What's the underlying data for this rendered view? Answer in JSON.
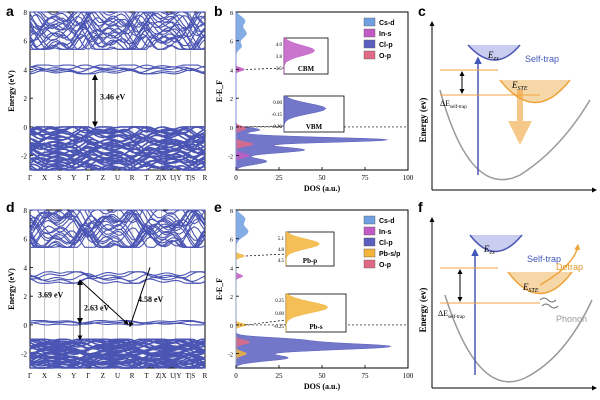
{
  "colors": {
    "band": "#4b55b3",
    "cs_d": "#6f9fe0",
    "in_s": "#c25cc4",
    "cl_p": "#5a5fbf",
    "o_p": "#e06a86",
    "pb_sp": "#f2b43a",
    "arrow_orange": "#f0a43c",
    "curve": "#9a9a9a",
    "selftrap_text": "#4057b8",
    "detrap_text": "#e59a28"
  },
  "chart_data": [
    {
      "panel": "a",
      "type": "line",
      "title": "",
      "ylabel": "Energy (eV)",
      "ylim": [
        -3,
        8
      ],
      "yticks": [
        "8",
        "6",
        "4",
        "2",
        "0",
        "-2"
      ],
      "kpoints": [
        "Γ",
        "X",
        "S",
        "Y",
        "Γ",
        "Z",
        "U",
        "R",
        "T",
        "Z|X",
        "U|Y",
        "T|S",
        "R"
      ],
      "annotations": [
        "3.46 eV"
      ],
      "band_groups": [
        {
          "name": "conduction_upper",
          "range": [
            5.4,
            8.0
          ]
        },
        {
          "name": "conduction_edge",
          "range": [
            3.7,
            4.3
          ]
        },
        {
          "name": "valence",
          "range": [
            -3.0,
            0.0
          ]
        }
      ]
    },
    {
      "panel": "b",
      "type": "area",
      "ylabel": "E-E_F",
      "xlabel": "DOS (a.u.)",
      "xlim": [
        0,
        100
      ],
      "ylim": [
        -3,
        8
      ],
      "xticks": [
        "0",
        "25",
        "50",
        "75",
        "100"
      ],
      "yticks": [
        "8",
        "6",
        "4",
        "2",
        "0",
        "-2"
      ],
      "legend": [
        "Cs-d",
        "In-s",
        "Cl-p",
        "O-p"
      ],
      "insets": [
        {
          "label": "CBM",
          "yticks": [
            "4.0",
            "3.8",
            "3.5"
          ]
        },
        {
          "label": "VBM",
          "yticks": [
            "0.00",
            "-0.15",
            "-0.30"
          ]
        }
      ],
      "peaks": [
        {
          "energy": -0.8,
          "value": 88
        },
        {
          "energy": -1.6,
          "value": 40
        },
        {
          "energy": 4.0,
          "value": 7
        },
        {
          "energy": 6.5,
          "value": 6
        }
      ]
    },
    {
      "panel": "d",
      "type": "line",
      "ylabel": "Energy (eV)",
      "ylim": [
        -3,
        8
      ],
      "yticks": [
        "8",
        "6",
        "4",
        "2",
        "0",
        "-2"
      ],
      "kpoints": [
        "Γ",
        "X",
        "S",
        "Y",
        "Γ",
        "Z",
        "U",
        "R",
        "T",
        "Z|X",
        "U|Y",
        "T|S",
        "R"
      ],
      "annotations": [
        "3.69 eV",
        "2.63 eV",
        "4.58 eV"
      ],
      "band_groups": [
        {
          "name": "conduction_upper",
          "range": [
            5.4,
            8.0
          ]
        },
        {
          "name": "conduction_edge",
          "range": [
            2.9,
            3.7
          ]
        },
        {
          "name": "pb_band",
          "range": [
            0.0,
            0.3
          ]
        },
        {
          "name": "valence",
          "range": [
            -3.0,
            -1.0
          ]
        }
      ]
    },
    {
      "panel": "e",
      "type": "area",
      "ylabel": "E-E_F",
      "xlabel": "DOS (a.u.)",
      "xlim": [
        0,
        100
      ],
      "ylim": [
        -3,
        8
      ],
      "xticks": [
        "0",
        "25",
        "50",
        "75",
        "100"
      ],
      "yticks": [
        "8",
        "6",
        "4",
        "2",
        "0",
        "-2"
      ],
      "legend": [
        "Cs-d",
        "In-s",
        "Cl-p",
        "Pb-s/p",
        "O-p"
      ],
      "insets": [
        {
          "label": "Pb-p",
          "yticks": [
            "5.1",
            "4.8",
            "4.5"
          ]
        },
        {
          "label": "Pb-s",
          "yticks": [
            "0.25",
            "0.00",
            "-0.25"
          ]
        }
      ],
      "peaks": [
        {
          "energy": -1.5,
          "value": 90
        },
        {
          "energy": 0.0,
          "value": 6
        },
        {
          "energy": 4.8,
          "value": 5
        },
        {
          "energy": 6.5,
          "value": 7
        }
      ]
    }
  ],
  "panel_c": {
    "label": "c",
    "ylabel": "Energy (ev)",
    "e_ex": "E",
    "e_ex_sub": "ex",
    "e_ste": "E",
    "e_ste_sub": "STE",
    "delta": "ΔE",
    "delta_sub": "self-trap",
    "self_trap": "Self-trap"
  },
  "panel_f": {
    "label": "f",
    "ylabel": "Energy (ev)",
    "e_ex": "E",
    "e_ex_sub": "ex",
    "e_ste": "E",
    "e_ste_sub": "STE",
    "delta": "ΔE",
    "delta_sub": "self-trap",
    "self_trap": "Self-trap",
    "detrap": "Detrap",
    "phonon": "Phonon"
  },
  "panel_labels": {
    "a": "a",
    "b": "b",
    "d": "d",
    "e": "e"
  }
}
